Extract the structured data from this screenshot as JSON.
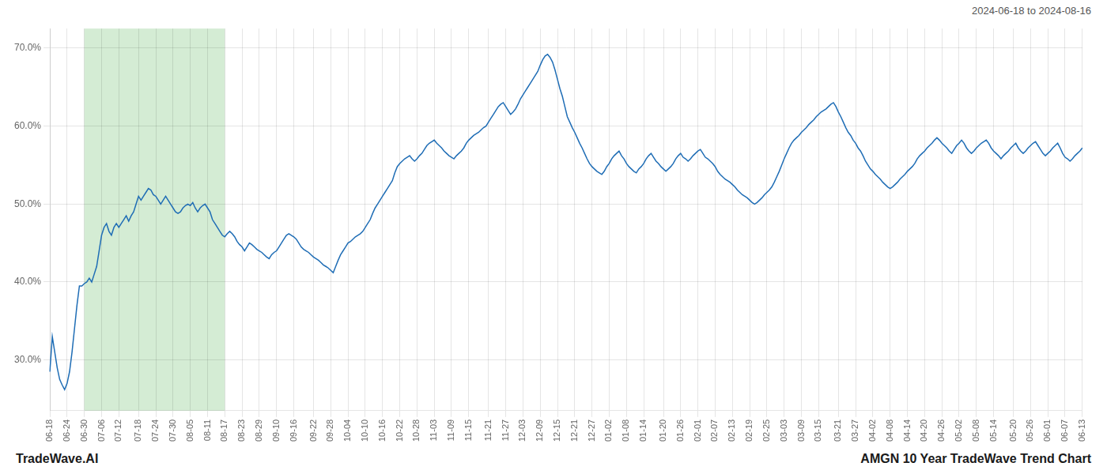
{
  "chart_data": {
    "type": "line",
    "title": "AMGN 10 Year TradeWave Trend Chart",
    "subtitle": "2024-06-18 to 2024-08-16",
    "annotations": [
      "TradeWave.AI"
    ],
    "color": "#1f6db5",
    "grid": true,
    "ylim": [
      0.235,
      0.725
    ],
    "yticks": [
      {
        "value": 0.3,
        "label": "30.0%"
      },
      {
        "value": 0.4,
        "label": "40.0%"
      },
      {
        "value": 0.5,
        "label": "50.0%"
      },
      {
        "value": 0.6,
        "label": "60.0%"
      },
      {
        "value": 0.7,
        "label": "70.0%"
      }
    ],
    "shaded_range": {
      "from": "06-30",
      "to": "08-17",
      "color": "#d4ecd4"
    },
    "categories": [
      "06-18",
      null,
      null,
      null,
      null,
      null,
      null,
      "06-24",
      null,
      null,
      null,
      null,
      null,
      null,
      "06-30",
      null,
      null,
      null,
      null,
      null,
      null,
      "07-06",
      null,
      null,
      null,
      null,
      null,
      null,
      "07-12",
      null,
      null,
      null,
      null,
      null,
      null,
      null,
      "07-18",
      null,
      null,
      null,
      null,
      null,
      null,
      "07-24",
      null,
      null,
      null,
      null,
      null,
      null,
      "07-30",
      null,
      null,
      null,
      null,
      null,
      null,
      "08-05",
      null,
      null,
      null,
      null,
      null,
      null,
      "08-11",
      null,
      null,
      null,
      null,
      null,
      null,
      "08-17",
      null,
      null,
      null,
      null,
      null,
      null,
      "08-23",
      null,
      null,
      null,
      null,
      null,
      null,
      "08-29",
      null,
      null,
      null,
      null,
      null,
      null,
      "09-10",
      null,
      null,
      null,
      null,
      null,
      null,
      "09-16",
      null,
      null,
      null,
      null,
      null,
      null,
      null,
      "09-22",
      null,
      null,
      null,
      null,
      null,
      null,
      "09-28",
      null,
      null,
      null,
      null,
      null,
      null,
      "10-04",
      null,
      null,
      null,
      null,
      null,
      null,
      "10-10",
      null,
      null,
      null,
      null,
      null,
      null,
      "10-16",
      null,
      null,
      null,
      null,
      null,
      null,
      "10-22",
      null,
      null,
      null,
      null,
      null,
      null,
      "10-28",
      null,
      null,
      null,
      null,
      null,
      null,
      "11-03",
      null,
      null,
      null,
      null,
      null,
      null,
      "11-09",
      null,
      null,
      null,
      null,
      null,
      null,
      "11-15",
      null,
      null,
      null,
      null,
      null,
      null,
      null,
      "11-21",
      null,
      null,
      null,
      null,
      null,
      null,
      "11-27",
      null,
      null,
      null,
      null,
      null,
      null,
      "12-03",
      null,
      null,
      null,
      null,
      null,
      null,
      "12-09",
      null,
      null,
      null,
      null,
      null,
      null,
      "12-15",
      null,
      null,
      null,
      null,
      null,
      null,
      "12-21",
      null,
      null,
      null,
      null,
      null,
      null,
      "12-27",
      null,
      null,
      null,
      null,
      null,
      null,
      "01-02",
      null,
      null,
      null,
      null,
      null,
      null,
      "01-08",
      null,
      null,
      null,
      null,
      null,
      null,
      "01-14",
      null,
      null,
      null,
      null,
      null,
      null,
      null,
      "01-20",
      null,
      null,
      null,
      null,
      null,
      null,
      "01-26",
      null,
      null,
      null,
      null,
      null,
      null,
      "02-01",
      null,
      null,
      null,
      null,
      null,
      null,
      "02-07",
      null,
      null,
      null,
      null,
      null,
      null,
      "02-13",
      null,
      null,
      null,
      null,
      null,
      null,
      "02-19",
      null,
      null,
      null,
      null,
      null,
      null,
      "02-25",
      null,
      null,
      null,
      null,
      null,
      null,
      "03-03",
      null,
      null,
      null,
      null,
      null,
      null,
      "03-09",
      null,
      null,
      null,
      null,
      null,
      null,
      "03-15",
      null,
      null,
      null,
      null,
      null,
      null,
      null,
      "03-21",
      null,
      null,
      null,
      null,
      null,
      null,
      "03-27",
      null,
      null,
      null,
      null,
      null,
      null,
      "04-02",
      null,
      null,
      null,
      null,
      null,
      null,
      "04-08",
      null,
      null,
      null,
      null,
      null,
      null,
      "04-14",
      null,
      null,
      null,
      null,
      null,
      null,
      "04-20",
      null,
      null,
      null,
      null,
      null,
      null,
      "04-26",
      null,
      null,
      null,
      null,
      null,
      null,
      "05-02",
      null,
      null,
      null,
      null,
      null,
      null,
      "05-08",
      null,
      null,
      null,
      null,
      null,
      null,
      "05-14",
      null,
      null,
      null,
      null,
      null,
      null,
      null,
      "05-20",
      null,
      null,
      null,
      null,
      null,
      null,
      "05-26",
      null,
      null,
      null,
      null,
      null,
      null,
      "06-01",
      null,
      null,
      null,
      null,
      null,
      null,
      "06-07",
      null,
      null,
      null,
      null,
      null,
      null,
      "06-13"
    ],
    "values": [
      0.285,
      0.33,
      0.31,
      0.29,
      0.275,
      0.268,
      0.262,
      0.27,
      0.285,
      0.31,
      0.34,
      0.37,
      0.395,
      0.395,
      0.398,
      0.4,
      0.405,
      0.4,
      0.41,
      0.42,
      0.44,
      0.46,
      0.47,
      0.475,
      0.465,
      0.46,
      0.47,
      0.475,
      0.47,
      0.475,
      0.48,
      0.485,
      0.478,
      0.485,
      0.49,
      0.5,
      0.51,
      0.505,
      0.51,
      0.515,
      0.52,
      0.518,
      0.512,
      0.51,
      0.505,
      0.5,
      0.505,
      0.51,
      0.505,
      0.5,
      0.495,
      0.49,
      0.488,
      0.49,
      0.495,
      0.498,
      0.5,
      0.498,
      0.502,
      0.495,
      0.49,
      0.495,
      0.498,
      0.5,
      0.495,
      0.49,
      0.48,
      0.475,
      0.47,
      0.465,
      0.46,
      0.458,
      0.462,
      0.465,
      0.462,
      0.458,
      0.452,
      0.448,
      0.445,
      0.44,
      0.445,
      0.45,
      0.448,
      0.445,
      0.442,
      0.44,
      0.438,
      0.435,
      0.432,
      0.43,
      0.435,
      0.438,
      0.44,
      0.445,
      0.45,
      0.455,
      0.46,
      0.462,
      0.46,
      0.458,
      0.455,
      0.45,
      0.445,
      0.442,
      0.44,
      0.438,
      0.435,
      0.432,
      0.43,
      0.428,
      0.425,
      0.422,
      0.42,
      0.418,
      0.415,
      0.412,
      0.42,
      0.428,
      0.435,
      0.44,
      0.445,
      0.45,
      0.452,
      0.455,
      0.458,
      0.46,
      0.462,
      0.465,
      0.47,
      0.475,
      0.48,
      0.488,
      0.495,
      0.5,
      0.505,
      0.51,
      0.515,
      0.52,
      0.525,
      0.53,
      0.54,
      0.548,
      0.552,
      0.555,
      0.558,
      0.56,
      0.562,
      0.558,
      0.555,
      0.558,
      0.562,
      0.565,
      0.57,
      0.575,
      0.578,
      0.58,
      0.582,
      0.578,
      0.575,
      0.572,
      0.568,
      0.565,
      0.562,
      0.56,
      0.558,
      0.562,
      0.565,
      0.568,
      0.572,
      0.578,
      0.582,
      0.585,
      0.588,
      0.59,
      0.592,
      0.595,
      0.598,
      0.6,
      0.605,
      0.61,
      0.615,
      0.62,
      0.625,
      0.628,
      0.63,
      0.625,
      0.62,
      0.615,
      0.618,
      0.622,
      0.628,
      0.635,
      0.64,
      0.645,
      0.65,
      0.655,
      0.66,
      0.665,
      0.67,
      0.678,
      0.685,
      0.69,
      0.692,
      0.688,
      0.682,
      0.672,
      0.66,
      0.648,
      0.638,
      0.625,
      0.612,
      0.605,
      0.598,
      0.592,
      0.585,
      0.578,
      0.572,
      0.565,
      0.558,
      0.552,
      0.548,
      0.545,
      0.542,
      0.54,
      0.538,
      0.542,
      0.548,
      0.552,
      0.558,
      0.562,
      0.565,
      0.568,
      0.562,
      0.558,
      0.552,
      0.548,
      0.545,
      0.542,
      0.54,
      0.545,
      0.548,
      0.552,
      0.558,
      0.562,
      0.565,
      0.56,
      0.555,
      0.552,
      0.548,
      0.545,
      0.542,
      0.545,
      0.548,
      0.552,
      0.558,
      0.562,
      0.565,
      0.56,
      0.558,
      0.555,
      0.558,
      0.562,
      0.565,
      0.568,
      0.57,
      0.565,
      0.56,
      0.558,
      0.555,
      0.552,
      0.548,
      0.542,
      0.538,
      0.535,
      0.532,
      0.53,
      0.528,
      0.525,
      0.522,
      0.518,
      0.515,
      0.512,
      0.51,
      0.508,
      0.505,
      0.502,
      0.5,
      0.502,
      0.505,
      0.508,
      0.512,
      0.515,
      0.518,
      0.522,
      0.528,
      0.535,
      0.542,
      0.55,
      0.558,
      0.565,
      0.572,
      0.578,
      0.582,
      0.585,
      0.588,
      0.592,
      0.595,
      0.598,
      0.602,
      0.605,
      0.608,
      0.612,
      0.615,
      0.618,
      0.62,
      0.622,
      0.625,
      0.628,
      0.63,
      0.625,
      0.618,
      0.612,
      0.605,
      0.598,
      0.592,
      0.588,
      0.582,
      0.578,
      0.572,
      0.568,
      0.562,
      0.555,
      0.55,
      0.545,
      0.542,
      0.538,
      0.535,
      0.532,
      0.528,
      0.525,
      0.522,
      0.52,
      0.522,
      0.525,
      0.528,
      0.532,
      0.535,
      0.538,
      0.542,
      0.545,
      0.548,
      0.552,
      0.558,
      0.562,
      0.565,
      0.568,
      0.572,
      0.575,
      0.578,
      0.582,
      0.585,
      0.582,
      0.578,
      0.575,
      0.572,
      0.568,
      0.565,
      0.57,
      0.575,
      0.578,
      0.582,
      0.578,
      0.572,
      0.568,
      0.565,
      0.568,
      0.572,
      0.575,
      0.578,
      0.58,
      0.582,
      0.578,
      0.572,
      0.568,
      0.565,
      0.562,
      0.558,
      0.562,
      0.565,
      0.568,
      0.572,
      0.575,
      0.578,
      0.572,
      0.568,
      0.565,
      0.568,
      0.572,
      0.575,
      0.578,
      0.58,
      0.575,
      0.57,
      0.565,
      0.562,
      0.565,
      0.568,
      0.572,
      0.575,
      0.578,
      0.572,
      0.565,
      0.56,
      0.558,
      0.555,
      0.558,
      0.562,
      0.565,
      0.568,
      0.572
    ]
  }
}
